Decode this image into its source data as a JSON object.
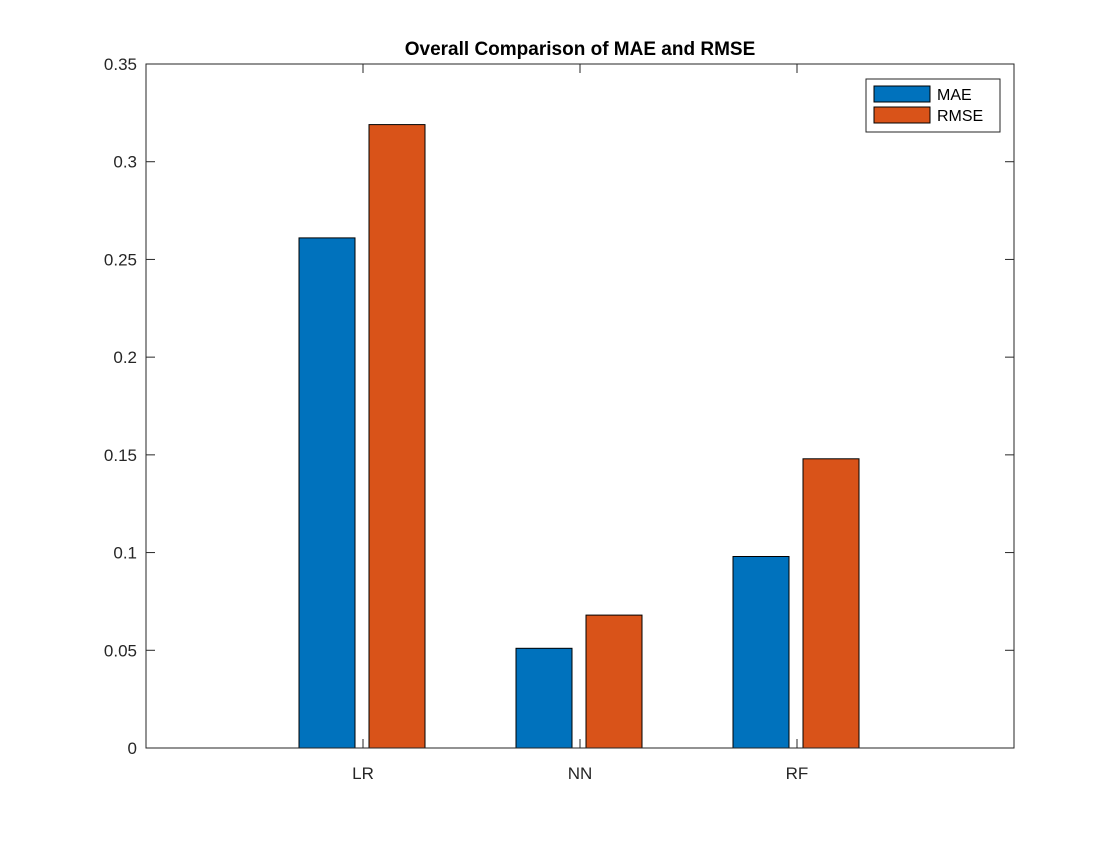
{
  "chart_data": {
    "type": "bar",
    "title": "Overall Comparison of MAE and RMSE",
    "xlabel": "",
    "ylabel": "",
    "categories": [
      "LR",
      "NN",
      "RF"
    ],
    "series": [
      {
        "name": "MAE",
        "values": [
          0.261,
          0.051,
          0.098
        ],
        "color": "#0072BD"
      },
      {
        "name": "RMSE",
        "values": [
          0.319,
          0.068,
          0.148
        ],
        "color": "#D95319"
      }
    ],
    "ylim": [
      0,
      0.35
    ],
    "yticks": [
      0,
      0.05,
      0.1,
      0.15,
      0.2,
      0.25,
      0.3,
      0.35
    ],
    "ytick_labels": [
      "0",
      "0.05",
      "0.1",
      "0.15",
      "0.2",
      "0.25",
      "0.3",
      "0.35"
    ],
    "grid": false,
    "legend_position": "top-right"
  }
}
